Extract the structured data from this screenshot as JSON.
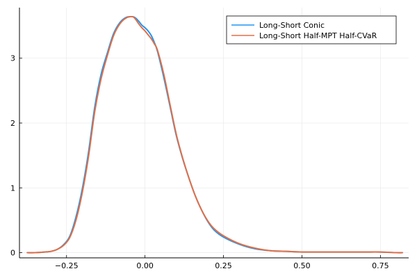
{
  "chart_data": {
    "type": "line",
    "title": "",
    "xlabel": "",
    "ylabel": "",
    "xlim": [
      -0.4,
      0.84
    ],
    "ylim": [
      -0.08,
      3.78
    ],
    "x_ticks": [
      -0.25,
      0.0,
      0.25,
      0.5,
      0.75
    ],
    "x_tick_labels": [
      "−0.25",
      "0.00",
      "0.25",
      "0.50",
      "0.75"
    ],
    "y_ticks": [
      0,
      1,
      2,
      3
    ],
    "y_tick_labels": [
      "0",
      "1",
      "2",
      "3"
    ],
    "grid": true,
    "legend_position": "top-right",
    "series": [
      {
        "name": "Long-Short Conic",
        "color": "#2196f3",
        "x": [
          -0.375,
          -0.35,
          -0.32,
          -0.3,
          -0.28,
          -0.26,
          -0.24,
          -0.22,
          -0.2,
          -0.18,
          -0.16,
          -0.14,
          -0.12,
          -0.1,
          -0.08,
          -0.06,
          -0.04,
          -0.03,
          -0.02,
          -0.01,
          0.0,
          0.01,
          0.02,
          0.03,
          0.04,
          0.06,
          0.08,
          0.1,
          0.12,
          0.14,
          0.16,
          0.18,
          0.2,
          0.22,
          0.25,
          0.3,
          0.35,
          0.4,
          0.45,
          0.5,
          0.55,
          0.6,
          0.65,
          0.7,
          0.75,
          0.8,
          0.82
        ],
        "y": [
          0.0,
          0.0,
          0.01,
          0.02,
          0.05,
          0.12,
          0.25,
          0.55,
          0.98,
          1.55,
          2.25,
          2.75,
          3.08,
          3.38,
          3.55,
          3.63,
          3.64,
          3.62,
          3.57,
          3.51,
          3.47,
          3.42,
          3.35,
          3.24,
          3.1,
          2.7,
          2.25,
          1.8,
          1.45,
          1.15,
          0.88,
          0.66,
          0.48,
          0.35,
          0.24,
          0.13,
          0.06,
          0.03,
          0.02,
          0.01,
          0.01,
          0.01,
          0.01,
          0.01,
          0.01,
          0.0,
          0.0
        ]
      },
      {
        "name": "Long-Short Half-MPT Half-CVaR",
        "color": "#e26f46",
        "x": [
          -0.375,
          -0.35,
          -0.32,
          -0.3,
          -0.28,
          -0.26,
          -0.24,
          -0.22,
          -0.2,
          -0.18,
          -0.16,
          -0.14,
          -0.12,
          -0.1,
          -0.08,
          -0.06,
          -0.04,
          -0.03,
          -0.02,
          -0.01,
          0.0,
          0.01,
          0.02,
          0.03,
          0.04,
          0.06,
          0.08,
          0.1,
          0.12,
          0.14,
          0.16,
          0.18,
          0.2,
          0.22,
          0.25,
          0.3,
          0.35,
          0.4,
          0.45,
          0.5,
          0.55,
          0.6,
          0.65,
          0.7,
          0.75,
          0.8,
          0.82
        ],
        "y": [
          0.0,
          0.0,
          0.01,
          0.02,
          0.05,
          0.11,
          0.23,
          0.5,
          0.92,
          1.48,
          2.18,
          2.68,
          3.04,
          3.35,
          3.53,
          3.62,
          3.64,
          3.6,
          3.53,
          3.47,
          3.42,
          3.36,
          3.3,
          3.22,
          3.12,
          2.75,
          2.28,
          1.82,
          1.46,
          1.15,
          0.88,
          0.66,
          0.49,
          0.37,
          0.26,
          0.14,
          0.07,
          0.03,
          0.02,
          0.01,
          0.01,
          0.01,
          0.01,
          0.01,
          0.01,
          0.0,
          0.0
        ]
      }
    ]
  }
}
